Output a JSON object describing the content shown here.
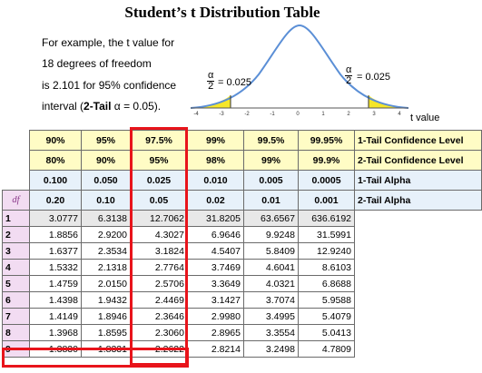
{
  "title": "Student’s t Distribution Table",
  "example": {
    "line1": "For example, the t value for",
    "line2": "18 degrees of freedom",
    "line3": "is 2.101 for 95% confidence",
    "line4_prefix": "interval (",
    "line4_tail": "2-Tail",
    "line4_suffix": " α = 0.05)."
  },
  "curve": {
    "alpha_num": "α",
    "alpha_den": "2",
    "left_eq": "= 0.025",
    "right_eq": "= 0.025",
    "axis_ticks": [
      "-4",
      "-3",
      "-2",
      "-1",
      "0",
      "1",
      "2",
      "3",
      "4"
    ],
    "axis_label": "t value",
    "shade_color": "#f5e62a",
    "curve_color": "#5b8fd6"
  },
  "header_rows": [
    {
      "label": "1-Tail Confidence Level",
      "style": "conf",
      "values": [
        "90%",
        "95%",
        "97.5%",
        "99%",
        "99.5%",
        "99.95%"
      ]
    },
    {
      "label": "2-Tail Confidence Level",
      "style": "conf",
      "values": [
        "80%",
        "90%",
        "95%",
        "98%",
        "99%",
        "99.9%"
      ]
    },
    {
      "label": "1-Tail Alpha",
      "style": "alpha",
      "values": [
        "0.100",
        "0.050",
        "0.025",
        "0.010",
        "0.005",
        "0.0005"
      ]
    },
    {
      "label": "2-Tail Alpha",
      "style": "alpha",
      "values": [
        "0.20",
        "0.10",
        "0.05",
        "0.02",
        "0.01",
        "0.001"
      ]
    }
  ],
  "df_header": "df",
  "rows": [
    {
      "df": "1",
      "values": [
        "3.0777",
        "6.3138",
        "12.7062",
        "31.8205",
        "63.6567",
        "636.6192"
      ]
    },
    {
      "df": "2",
      "values": [
        "1.8856",
        "2.9200",
        "4.3027",
        "6.9646",
        "9.9248",
        "31.5991"
      ]
    },
    {
      "df": "3",
      "values": [
        "1.6377",
        "2.3534",
        "3.1824",
        "4.5407",
        "5.8409",
        "12.9240"
      ]
    },
    {
      "df": "4",
      "values": [
        "1.5332",
        "2.1318",
        "2.7764",
        "3.7469",
        "4.6041",
        "8.6103"
      ]
    },
    {
      "df": "5",
      "values": [
        "1.4759",
        "2.0150",
        "2.5706",
        "3.3649",
        "4.0321",
        "6.8688"
      ]
    },
    {
      "df": "6",
      "values": [
        "1.4398",
        "1.9432",
        "2.4469",
        "3.1427",
        "3.7074",
        "5.9588"
      ]
    },
    {
      "df": "7",
      "values": [
        "1.4149",
        "1.8946",
        "2.3646",
        "2.9980",
        "3.4995",
        "5.4079"
      ]
    },
    {
      "df": "8",
      "values": [
        "1.3968",
        "1.8595",
        "2.3060",
        "2.8965",
        "3.3554",
        "5.0413"
      ]
    },
    {
      "df": "9",
      "values": [
        "1.3830",
        "1.8331",
        "2.2622",
        "2.8214",
        "3.2498",
        "4.7809"
      ]
    }
  ],
  "highlight_color": "#e8141b"
}
